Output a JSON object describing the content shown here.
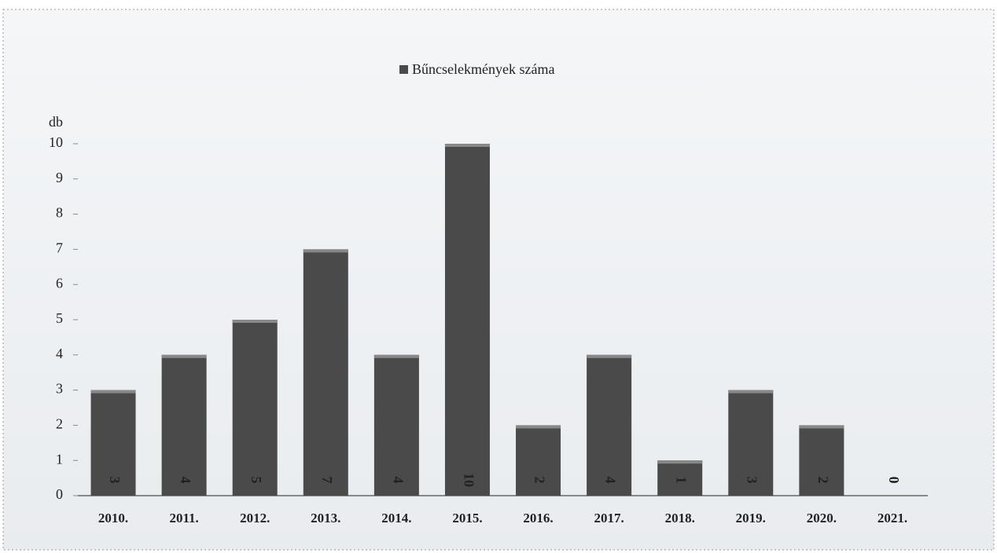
{
  "chart_data": {
    "type": "bar",
    "legend": "Bűncselekmények száma",
    "y_label": "db",
    "categories": [
      "2010.",
      "2011.",
      "2012.",
      "2013.",
      "2014.",
      "2015.",
      "2016.",
      "2017.",
      "2018.",
      "2019.",
      "2020.",
      "2021."
    ],
    "values": [
      3,
      4,
      5,
      7,
      4,
      10,
      2,
      4,
      1,
      3,
      2,
      0
    ],
    "color": "#4a4a4a",
    "ylim": [
      0,
      10
    ],
    "yticks": [
      0,
      1,
      2,
      3,
      4,
      5,
      6,
      7,
      8,
      9,
      10
    ],
    "grid": false,
    "legend_position": "top"
  }
}
